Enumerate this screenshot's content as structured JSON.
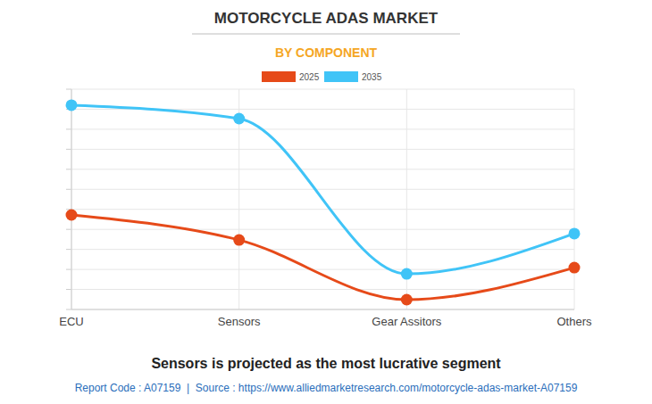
{
  "chart_data": {
    "type": "line",
    "title": "MOTORCYCLE ADAS MARKET",
    "subtitle": "BY COMPONENT",
    "categories": [
      "ECU",
      "Sensors",
      "Gear Assitors",
      "Others"
    ],
    "series": [
      {
        "name": "2025",
        "color": "#e64a19",
        "values": [
          4.72,
          3.47,
          0.49,
          2.09
        ],
        "marker": "circle"
      },
      {
        "name": "2035",
        "color": "#40c4f7",
        "values": [
          10.2,
          9.53,
          1.78,
          3.79
        ],
        "marker": "circle"
      }
    ],
    "ylim": [
      0,
      11
    ],
    "yticks": [
      0,
      1,
      2,
      3,
      4,
      5,
      6,
      7,
      8,
      9,
      10,
      11
    ],
    "grid": true,
    "legend": "top",
    "tick_labels": "x",
    "caption": "Sensors is projected as the most lucrative segment",
    "source": "Report Code : A07159  |  Source : https://www.alliedmarketresearch.com/motorcycle-adas-market-A07159"
  }
}
